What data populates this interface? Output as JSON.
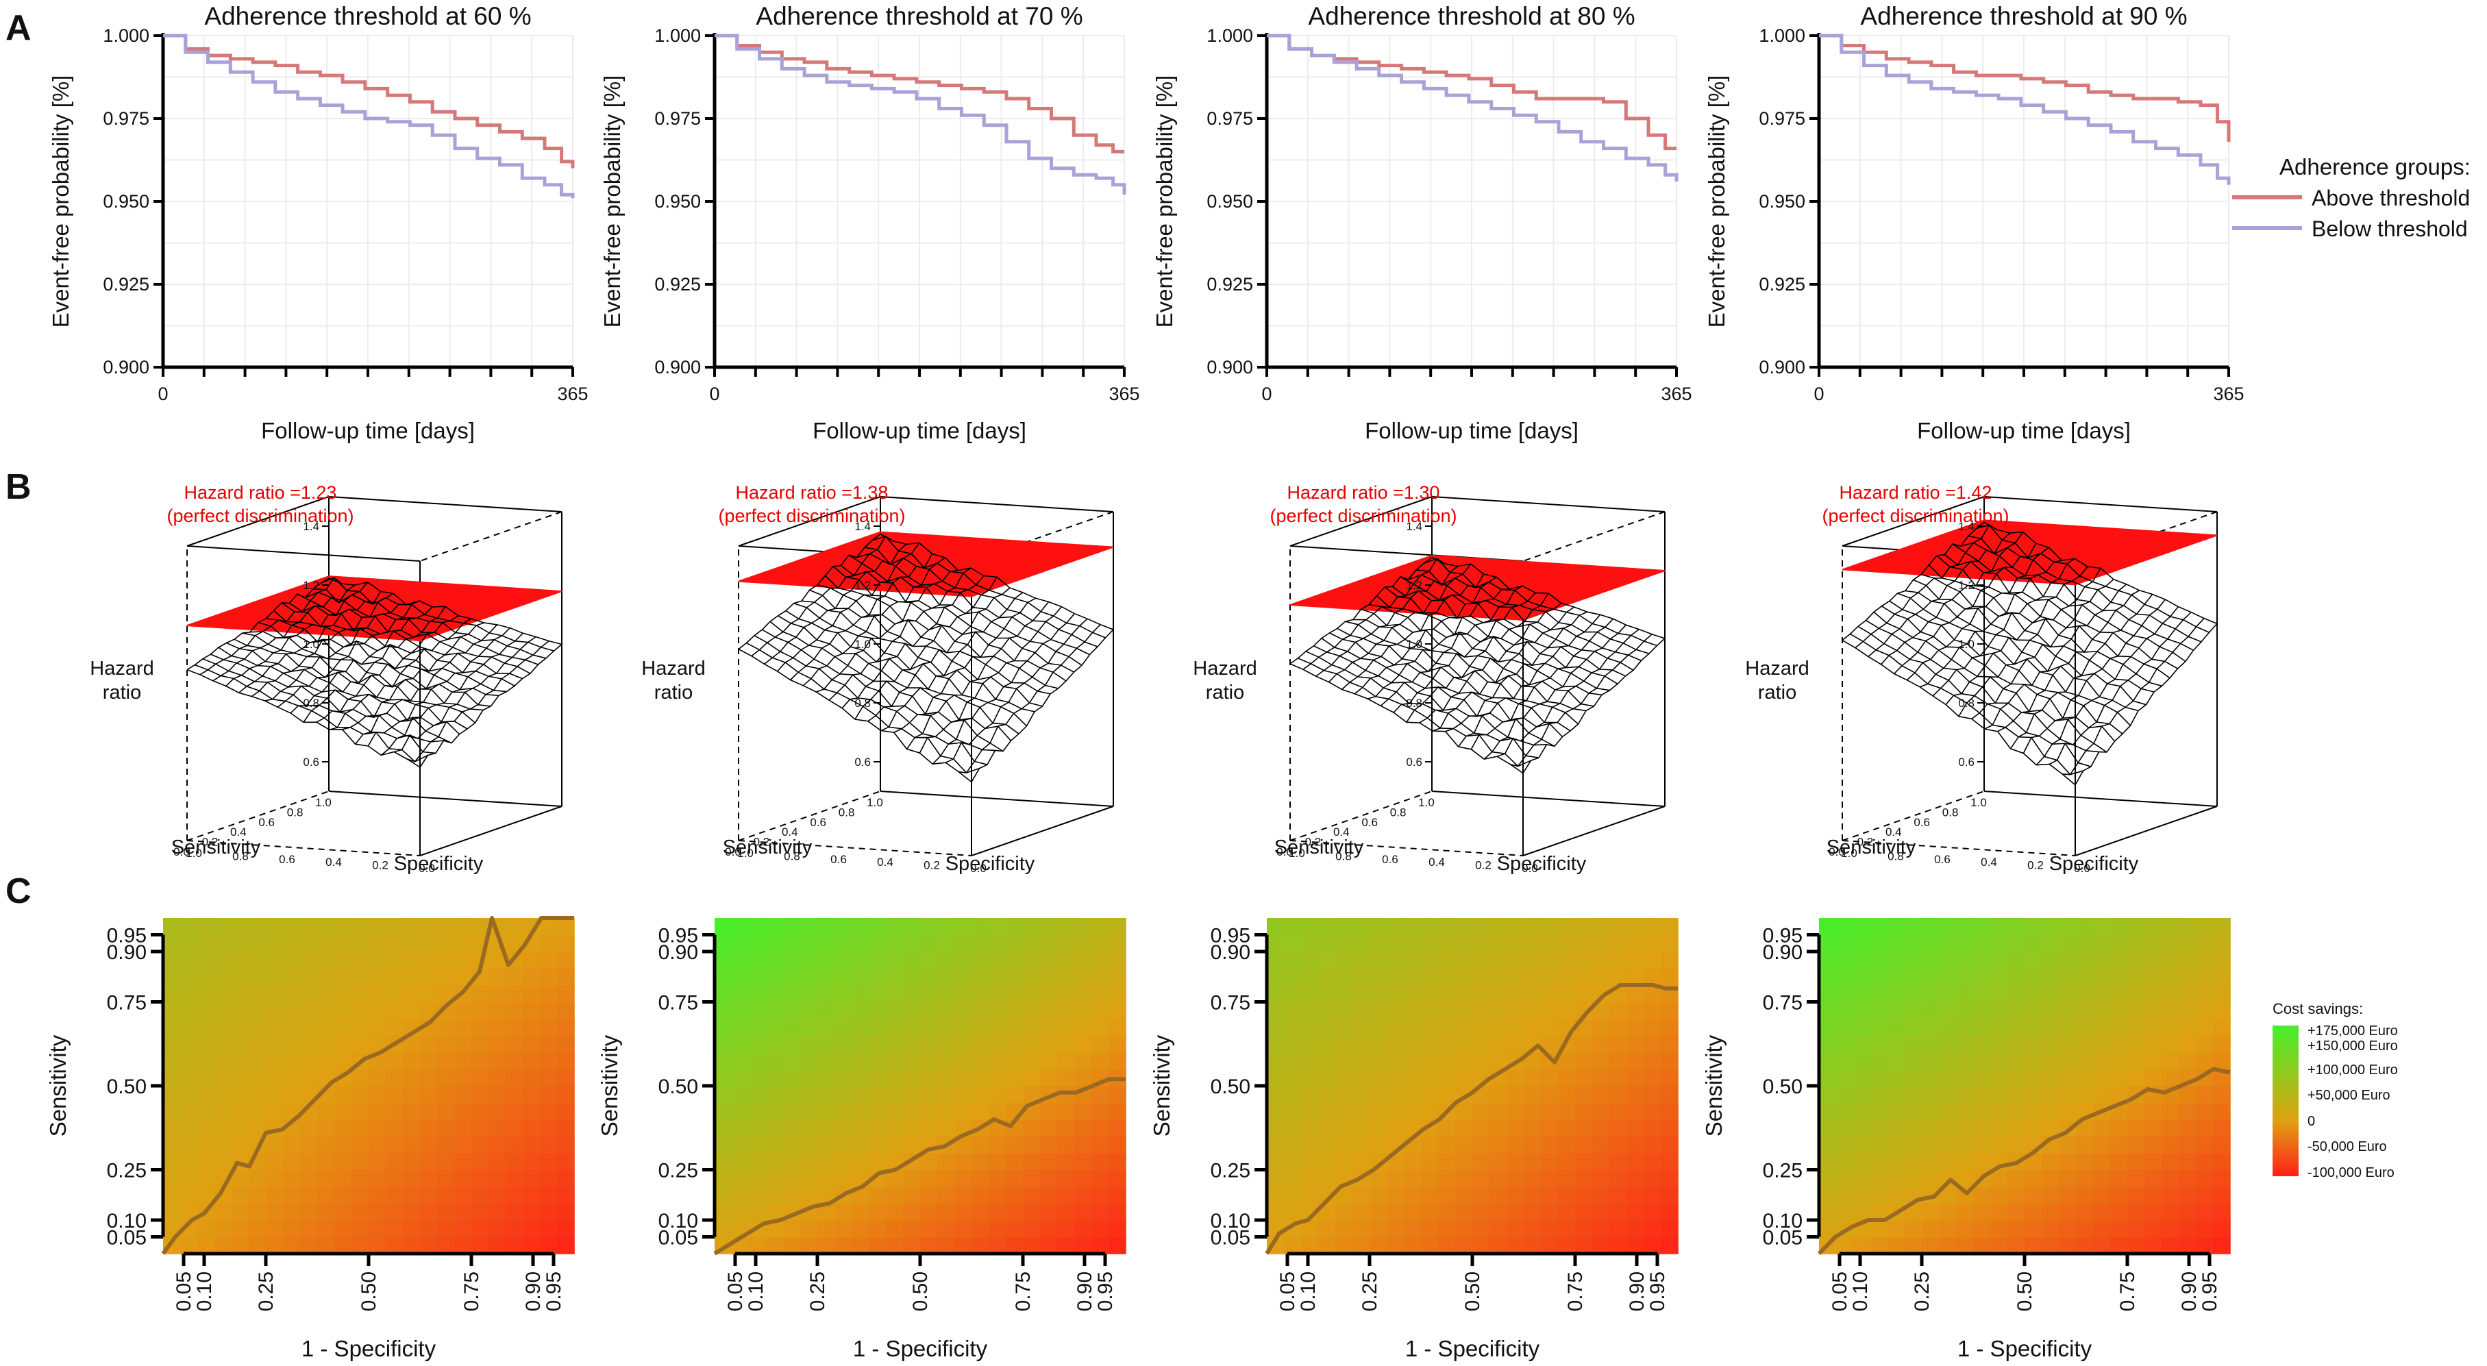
{
  "panel_letters": {
    "a": "A",
    "b": "B",
    "c": "C"
  },
  "legend": {
    "title": "Adherence groups:",
    "items": [
      {
        "label": "Above threshold",
        "color": "#d47878"
      },
      {
        "label": "Below threshold",
        "color": "#a8a2d8"
      }
    ]
  },
  "cost_legend": {
    "title": "Cost savings:",
    "labels": [
      "+175,000 Euro",
      "+150,000 Euro",
      "+100,000 Euro",
      "+50,000 Euro",
      "0",
      "-50,000 Euro",
      "-100,000 Euro"
    ],
    "values": [
      175000,
      150000,
      100000,
      50000,
      0,
      -50000,
      -100000
    ],
    "color_max": "#44f02c",
    "color_zero": "#e0a012",
    "color_min": "#ff2018"
  },
  "chart_data": [
    {
      "type": "line",
      "panel": "A1",
      "title": "Adherence threshold at 60 %",
      "xlabel": "Follow-up time [days]",
      "ylabel": "Event-free probability [%]",
      "xlim": [
        0,
        365
      ],
      "ylim": [
        0.9,
        1.0
      ],
      "xticks": [
        "0",
        "365"
      ],
      "yticks": [
        "0.900",
        "0.925",
        "0.950",
        "0.975",
        "1.000"
      ],
      "series": [
        {
          "name": "Above threshold",
          "x": [
            0,
            20,
            40,
            60,
            80,
            100,
            120,
            140,
            160,
            180,
            200,
            220,
            240,
            260,
            280,
            300,
            320,
            340,
            355,
            365
          ],
          "values": [
            1.0,
            0.996,
            0.994,
            0.993,
            0.992,
            0.991,
            0.989,
            0.988,
            0.986,
            0.984,
            0.982,
            0.98,
            0.977,
            0.975,
            0.973,
            0.971,
            0.969,
            0.966,
            0.962,
            0.96
          ]
        },
        {
          "name": "Below threshold",
          "x": [
            0,
            20,
            40,
            60,
            80,
            100,
            120,
            140,
            160,
            180,
            200,
            220,
            240,
            260,
            280,
            300,
            320,
            340,
            355,
            365
          ],
          "values": [
            1.0,
            0.995,
            0.992,
            0.989,
            0.986,
            0.983,
            0.981,
            0.979,
            0.977,
            0.975,
            0.974,
            0.973,
            0.97,
            0.966,
            0.963,
            0.961,
            0.957,
            0.955,
            0.952,
            0.951
          ]
        }
      ]
    },
    {
      "type": "line",
      "panel": "A2",
      "title": "Adherence threshold at 70 %",
      "xlabel": "Follow-up time [days]",
      "ylabel": "Event-free probability [%]",
      "xlim": [
        0,
        365
      ],
      "ylim": [
        0.9,
        1.0
      ],
      "xticks": [
        "0",
        "365"
      ],
      "yticks": [
        "0.900",
        "0.925",
        "0.950",
        "0.975",
        "1.000"
      ],
      "series": [
        {
          "name": "Above threshold",
          "x": [
            0,
            20,
            40,
            60,
            80,
            100,
            120,
            140,
            160,
            180,
            200,
            220,
            240,
            260,
            280,
            300,
            320,
            340,
            355,
            365
          ],
          "values": [
            1.0,
            0.997,
            0.995,
            0.993,
            0.992,
            0.99,
            0.989,
            0.988,
            0.987,
            0.986,
            0.985,
            0.984,
            0.983,
            0.981,
            0.978,
            0.975,
            0.97,
            0.967,
            0.965,
            0.965
          ]
        },
        {
          "name": "Below threshold",
          "x": [
            0,
            20,
            40,
            60,
            80,
            100,
            120,
            140,
            160,
            180,
            200,
            220,
            240,
            260,
            280,
            300,
            320,
            340,
            355,
            365
          ],
          "values": [
            1.0,
            0.996,
            0.993,
            0.99,
            0.988,
            0.986,
            0.985,
            0.984,
            0.983,
            0.981,
            0.978,
            0.976,
            0.973,
            0.968,
            0.963,
            0.96,
            0.958,
            0.957,
            0.955,
            0.952
          ]
        }
      ]
    },
    {
      "type": "line",
      "panel": "A3",
      "title": "Adherence threshold at 80 %",
      "xlabel": "Follow-up time [days]",
      "ylabel": "Event-free probability [%]",
      "xlim": [
        0,
        365
      ],
      "ylim": [
        0.9,
        1.0
      ],
      "xticks": [
        "0",
        "365"
      ],
      "yticks": [
        "0.900",
        "0.925",
        "0.950",
        "0.975",
        "1.000"
      ],
      "series": [
        {
          "name": "Above threshold",
          "x": [
            0,
            20,
            40,
            60,
            80,
            100,
            120,
            140,
            160,
            180,
            200,
            220,
            240,
            260,
            280,
            300,
            320,
            340,
            355,
            365
          ],
          "values": [
            1.0,
            0.996,
            0.994,
            0.993,
            0.992,
            0.991,
            0.99,
            0.989,
            0.988,
            0.987,
            0.985,
            0.983,
            0.981,
            0.981,
            0.981,
            0.98,
            0.975,
            0.97,
            0.966,
            0.966
          ]
        },
        {
          "name": "Below threshold",
          "x": [
            0,
            20,
            40,
            60,
            80,
            100,
            120,
            140,
            160,
            180,
            200,
            220,
            240,
            260,
            280,
            300,
            320,
            340,
            355,
            365
          ],
          "values": [
            1.0,
            0.996,
            0.994,
            0.992,
            0.99,
            0.988,
            0.986,
            0.984,
            0.982,
            0.98,
            0.978,
            0.976,
            0.974,
            0.971,
            0.968,
            0.966,
            0.963,
            0.961,
            0.958,
            0.956
          ]
        }
      ]
    },
    {
      "type": "line",
      "panel": "A4",
      "title": "Adherence threshold at 90 %",
      "xlabel": "Follow-up time [days]",
      "ylabel": "Event-free probability [%]",
      "xlim": [
        0,
        365
      ],
      "ylim": [
        0.9,
        1.0
      ],
      "xticks": [
        "0",
        "365"
      ],
      "yticks": [
        "0.900",
        "0.925",
        "0.950",
        "0.975",
        "1.000"
      ],
      "series": [
        {
          "name": "Above threshold",
          "x": [
            0,
            20,
            40,
            60,
            80,
            100,
            120,
            140,
            160,
            180,
            200,
            220,
            240,
            260,
            280,
            300,
            320,
            340,
            355,
            365
          ],
          "values": [
            1.0,
            0.997,
            0.995,
            0.993,
            0.992,
            0.991,
            0.989,
            0.988,
            0.988,
            0.987,
            0.986,
            0.985,
            0.983,
            0.982,
            0.981,
            0.981,
            0.98,
            0.979,
            0.974,
            0.968
          ]
        },
        {
          "name": "Below threshold",
          "x": [
            0,
            20,
            40,
            60,
            80,
            100,
            120,
            140,
            160,
            180,
            200,
            220,
            240,
            260,
            280,
            300,
            320,
            340,
            355,
            365
          ],
          "values": [
            1.0,
            0.995,
            0.991,
            0.988,
            0.986,
            0.984,
            0.983,
            0.982,
            0.981,
            0.979,
            0.977,
            0.975,
            0.973,
            0.971,
            0.968,
            0.966,
            0.964,
            0.961,
            0.957,
            0.955
          ]
        }
      ]
    },
    {
      "type": "surface",
      "panel": "B1",
      "title": "Hazard ratio =1.23",
      "subtitle": "(perfect discrimination)",
      "zlabel_1": "Hazard",
      "zlabel_2": "ratio",
      "xlabel": "Sensitivity",
      "ylabel": "Specificity",
      "zticks": [
        "0.6",
        "0.8",
        "1.0",
        "1.2",
        "1.4"
      ],
      "zlim": [
        0.5,
        1.5
      ],
      "sens_ticks": [
        "1.0",
        "0.8",
        "0.6",
        "0.4",
        "0.2",
        "0.0"
      ],
      "spec_ticks": [
        "1.0",
        "0.8",
        "0.6",
        "0.4",
        "0.2",
        "0.0"
      ],
      "plane_hr": 1.23,
      "hr_at_corner": {
        "sens1_spec1": 1.23,
        "sens1_spec0": 1.05,
        "sens0_spec1": 1.08,
        "sens0_spec0": 0.8
      }
    },
    {
      "type": "surface",
      "panel": "B2",
      "title": "Hazard ratio =1.38",
      "subtitle": "(perfect discrimination)",
      "zlabel_1": "Hazard",
      "zlabel_2": "ratio",
      "xlabel": "Sensitivity",
      "ylabel": "Specificity",
      "zticks": [
        "0.6",
        "0.8",
        "1.0",
        "1.2",
        "1.4"
      ],
      "zlim": [
        0.5,
        1.5
      ],
      "sens_ticks": [
        "1.0",
        "0.8",
        "0.6",
        "0.4",
        "0.2",
        "0.0"
      ],
      "spec_ticks": [
        "1.0",
        "0.8",
        "0.6",
        "0.4",
        "0.2",
        "0.0"
      ],
      "plane_hr": 1.38,
      "hr_at_corner": {
        "sens1_spec1": 1.38,
        "sens1_spec0": 1.1,
        "sens0_spec1": 1.15,
        "sens0_spec0": 0.75
      }
    },
    {
      "type": "surface",
      "panel": "B3",
      "title": "Hazard ratio =1.30",
      "subtitle": "(perfect discrimination)",
      "zlabel_1": "Hazard",
      "zlabel_2": "ratio",
      "xlabel": "Sensitivity",
      "ylabel": "Specificity",
      "zticks": [
        "0.6",
        "0.8",
        "1.0",
        "1.2",
        "1.4"
      ],
      "zlim": [
        0.5,
        1.5
      ],
      "sens_ticks": [
        "1.0",
        "0.8",
        "0.6",
        "0.4",
        "0.2",
        "0.0"
      ],
      "spec_ticks": [
        "1.0",
        "0.8",
        "0.6",
        "0.4",
        "0.2",
        "0.0"
      ],
      "plane_hr": 1.3,
      "hr_at_corner": {
        "sens1_spec1": 1.3,
        "sens1_spec0": 1.07,
        "sens0_spec1": 1.1,
        "sens0_spec0": 0.78
      }
    },
    {
      "type": "surface",
      "panel": "B4",
      "title": "Hazard ratio =1.42",
      "subtitle": "(perfect discrimination)",
      "zlabel_1": "Hazard",
      "zlabel_2": "ratio",
      "xlabel": "Sensitivity",
      "ylabel": "Specificity",
      "zticks": [
        "0.6",
        "0.8",
        "1.0",
        "1.2",
        "1.4"
      ],
      "zlim": [
        0.5,
        1.5
      ],
      "sens_ticks": [
        "1.0",
        "0.8",
        "0.6",
        "0.4",
        "0.2",
        "0.0"
      ],
      "spec_ticks": [
        "1.0",
        "0.8",
        "0.6",
        "0.4",
        "0.2",
        "0.0"
      ],
      "plane_hr": 1.42,
      "hr_at_corner": {
        "sens1_spec1": 1.42,
        "sens1_spec0": 1.12,
        "sens0_spec1": 1.18,
        "sens0_spec0": 0.74
      }
    },
    {
      "type": "heatmap",
      "panel": "C1",
      "xlabel": "1 - Specificity",
      "ylabel": "Sensitivity",
      "ticks": [
        "0.05",
        "0.10",
        "0.25",
        "0.50",
        "0.75",
        "0.90",
        "0.95"
      ],
      "tick_values": [
        0.05,
        0.1,
        0.25,
        0.5,
        0.75,
        0.9,
        0.95
      ],
      "value_at": {
        "x0_y1": 60000,
        "x0_y0": 0,
        "x1_y1": 0,
        "x1_y0": -100000
      },
      "break_even": {
        "x": [
          0.0,
          0.03,
          0.07,
          0.1,
          0.14,
          0.18,
          0.21,
          0.25,
          0.29,
          0.33,
          0.37,
          0.41,
          0.45,
          0.49,
          0.53,
          0.57,
          0.61,
          0.65,
          0.69,
          0.73,
          0.77,
          0.8,
          0.84,
          0.88,
          0.92,
          0.96,
          1.0
        ],
        "y": [
          0.0,
          0.05,
          0.1,
          0.12,
          0.18,
          0.27,
          0.26,
          0.36,
          0.37,
          0.41,
          0.46,
          0.51,
          0.54,
          0.58,
          0.6,
          0.63,
          0.66,
          0.69,
          0.74,
          0.78,
          0.84,
          1.0,
          0.86,
          0.92,
          1.0,
          1.0,
          1.0
        ]
      }
    },
    {
      "type": "heatmap",
      "panel": "C2",
      "xlabel": "1 - Specificity",
      "ylabel": "Sensitivity",
      "ticks": [
        "0.05",
        "0.10",
        "0.25",
        "0.50",
        "0.75",
        "0.90",
        "0.95"
      ],
      "tick_values": [
        0.05,
        0.1,
        0.25,
        0.5,
        0.75,
        0.9,
        0.95
      ],
      "value_at": {
        "x0_y1": 175000,
        "x0_y0": 0,
        "x1_y1": 40000,
        "x1_y0": -100000
      },
      "break_even": {
        "x": [
          0.0,
          0.04,
          0.08,
          0.12,
          0.16,
          0.2,
          0.24,
          0.28,
          0.32,
          0.36,
          0.4,
          0.44,
          0.48,
          0.52,
          0.56,
          0.6,
          0.64,
          0.68,
          0.72,
          0.76,
          0.8,
          0.84,
          0.88,
          0.92,
          0.96,
          1.0
        ],
        "y": [
          0.0,
          0.03,
          0.06,
          0.09,
          0.1,
          0.12,
          0.14,
          0.15,
          0.18,
          0.2,
          0.24,
          0.25,
          0.28,
          0.31,
          0.32,
          0.35,
          0.37,
          0.4,
          0.38,
          0.44,
          0.46,
          0.48,
          0.48,
          0.5,
          0.52,
          0.52
        ]
      }
    },
    {
      "type": "heatmap",
      "panel": "C3",
      "xlabel": "1 - Specificity",
      "ylabel": "Sensitivity",
      "ticks": [
        "0.05",
        "0.10",
        "0.25",
        "0.50",
        "0.75",
        "0.90",
        "0.95"
      ],
      "tick_values": [
        0.05,
        0.1,
        0.25,
        0.5,
        0.75,
        0.9,
        0.95
      ],
      "value_at": {
        "x0_y1": 90000,
        "x0_y0": 0,
        "x1_y1": 10000,
        "x1_y0": -100000
      },
      "break_even": {
        "x": [
          0.0,
          0.03,
          0.07,
          0.1,
          0.14,
          0.18,
          0.22,
          0.26,
          0.3,
          0.34,
          0.38,
          0.42,
          0.46,
          0.5,
          0.54,
          0.58,
          0.62,
          0.66,
          0.7,
          0.74,
          0.78,
          0.82,
          0.86,
          0.9,
          0.94,
          0.97,
          1.0
        ],
        "y": [
          0.0,
          0.06,
          0.09,
          0.1,
          0.15,
          0.2,
          0.22,
          0.25,
          0.29,
          0.33,
          0.37,
          0.4,
          0.45,
          0.48,
          0.52,
          0.55,
          0.58,
          0.62,
          0.57,
          0.66,
          0.72,
          0.77,
          0.8,
          0.8,
          0.8,
          0.79,
          0.79
        ]
      }
    },
    {
      "type": "heatmap",
      "panel": "C4",
      "xlabel": "1 - Specificity",
      "ylabel": "Sensitivity",
      "ticks": [
        "0.05",
        "0.10",
        "0.25",
        "0.50",
        "0.75",
        "0.90",
        "0.95"
      ],
      "tick_values": [
        0.05,
        0.1,
        0.25,
        0.5,
        0.75,
        0.9,
        0.95
      ],
      "value_at": {
        "x0_y1": 175000,
        "x0_y0": 0,
        "x1_y1": 40000,
        "x1_y0": -100000
      },
      "break_even": {
        "x": [
          0.0,
          0.04,
          0.08,
          0.12,
          0.16,
          0.2,
          0.24,
          0.28,
          0.32,
          0.36,
          0.4,
          0.44,
          0.48,
          0.52,
          0.56,
          0.6,
          0.64,
          0.68,
          0.72,
          0.76,
          0.8,
          0.84,
          0.88,
          0.92,
          0.96,
          1.0
        ],
        "y": [
          0.0,
          0.05,
          0.08,
          0.1,
          0.1,
          0.13,
          0.16,
          0.17,
          0.22,
          0.18,
          0.23,
          0.26,
          0.27,
          0.3,
          0.34,
          0.36,
          0.4,
          0.42,
          0.44,
          0.46,
          0.49,
          0.48,
          0.5,
          0.52,
          0.55,
          0.54
        ]
      }
    }
  ]
}
